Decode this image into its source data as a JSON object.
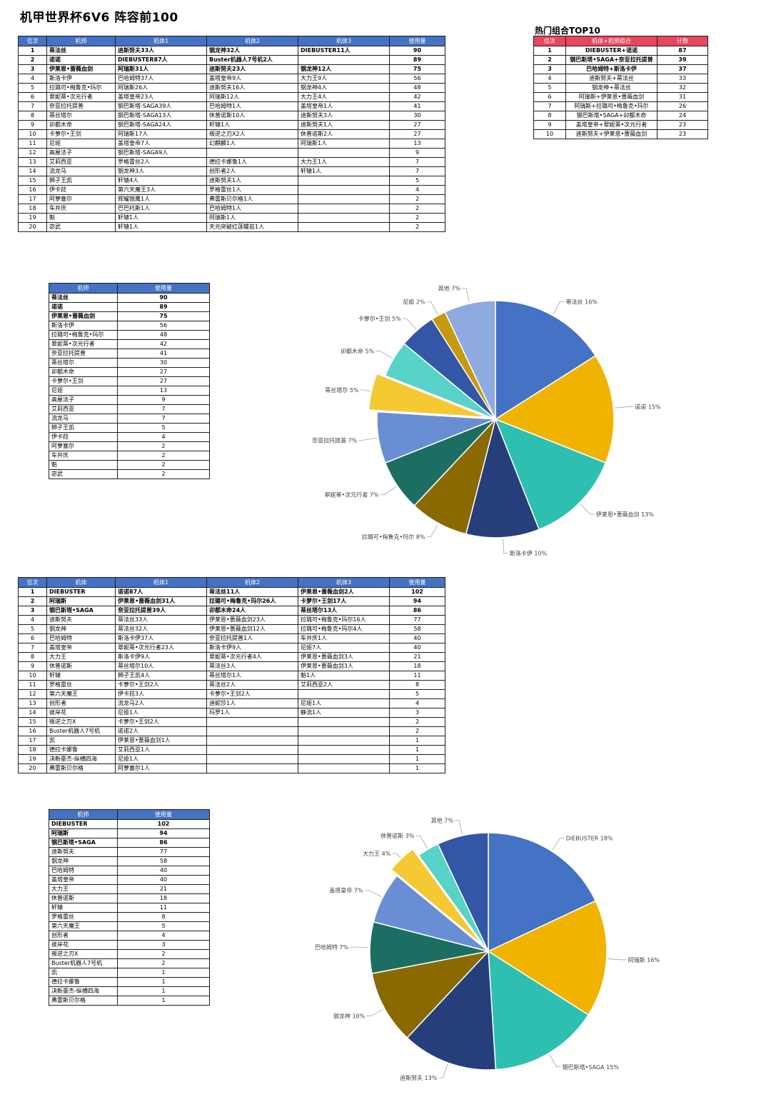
{
  "page": {
    "title": "机甲世界杯6V6 阵容前100",
    "top_combo_title": "热门组合TOP10"
  },
  "table1": {
    "headers": [
      "位次",
      "机师",
      "机体1",
      "机体2",
      "机体3",
      "使用量"
    ],
    "rows": [
      [
        "1",
        "蒂法丝",
        "迪斯努夫33人",
        "钢龙神32人",
        "DIEBUSTER11人",
        "90"
      ],
      [
        "2",
        "诺诺",
        "DIEBUSTER87人",
        "Buster机器人7号机2人",
        "",
        "89"
      ],
      [
        "3",
        "伊莱恩•蔷薇血剑",
        "阿瑞斯31人",
        "迪斯努夫23人",
        "钢龙神12人",
        "75"
      ],
      [
        "4",
        "斯洛卡伊",
        "巴哈姆特37人",
        "盖塔皇帝9人",
        "大力王9人",
        "56"
      ],
      [
        "5",
        "拉璐可•梅鲁克•玛尔",
        "阿瑞斯26人",
        "迪斯努夫16人",
        "钢龙神4人",
        "48"
      ],
      [
        "6",
        "翠妮蒂•次元行者",
        "盖塔皇帝23人",
        "阿瑞斯12人",
        "大力王4人",
        "42"
      ],
      [
        "7",
        "奈亚拉托提普",
        "钢巴斯塔-SAGA39人",
        "巴哈姆特1人",
        "盖塔皇帝1人",
        "41"
      ],
      [
        "8",
        "蒂丝塔尔",
        "钢巴斯塔-SAGA13人",
        "休普诺斯10人",
        "迪斯努夫3人",
        "30"
      ],
      [
        "9",
        "卯都木命",
        "钢巴斯塔-SAGA24人",
        "轩辕1人",
        "迪斯努夫1人",
        "27"
      ],
      [
        "10",
        "卡萝尔•王剑",
        "阿瑞斯17人",
        "叛逆之刃X2人",
        "休普诺斯2人",
        "27"
      ],
      [
        "11",
        "尼娅",
        "盖塔皇帝7人",
        "幻麒麟1人",
        "阿瑞斯1人",
        "13"
      ],
      [
        "12",
        "高屋法子",
        "钢巴斯塔-SAGA9人",
        "",
        "",
        "9"
      ],
      [
        "13",
        "艾莉西亚",
        "罗格雷丝2人",
        "德拉卡娜鲁1人",
        "大力王1人",
        "7"
      ],
      [
        "14",
        "流龙马",
        "钢龙神3人",
        "创形者2人",
        "轩辕1人",
        "7"
      ],
      [
        "15",
        "狮子王凯",
        "轩辕4人",
        "迪斯努夫1人",
        "",
        "5"
      ],
      [
        "16",
        "伊卡菈",
        "第六天魔王3人",
        "罗格雷丝1人",
        "",
        "4"
      ],
      [
        "17",
        "阿萝塞尔",
        "辉耀银鹰1人",
        "弗雷斯贝尔格1人",
        "",
        "2"
      ],
      [
        "18",
        "车弁庆",
        "巴巴托斯1人",
        "巴哈姆特1人",
        "",
        "2"
      ],
      [
        "19",
        "魁",
        "轩辕1人",
        "阿瑞斯1人",
        "",
        "2"
      ],
      [
        "20",
        "宓武",
        "轩辕1人",
        "天元突破红莲螺岩1人",
        "",
        "2"
      ]
    ]
  },
  "combo_table": {
    "headers": [
      "位次",
      "机体+机师组合",
      "计数"
    ],
    "rows": [
      [
        "1",
        "DIEBUSTER+诺诺",
        "87"
      ],
      [
        "2",
        "钢巴斯塔•SAGA+奈亚拉托提普",
        "39"
      ],
      [
        "3",
        "巴哈姆特+斯洛卡伊",
        "37"
      ],
      [
        "4",
        "迪斯努夫+蒂法丝",
        "33"
      ],
      [
        "5",
        "钢龙神+蒂法丝",
        "32"
      ],
      [
        "6",
        "阿瑞斯+伊莱恩•蔷薇血剑",
        "31"
      ],
      [
        "7",
        "阿瑞斯+拉璐可•梅鲁克•玛尔",
        "26"
      ],
      [
        "8",
        "钢巴斯塔•SAGA+卯都木命",
        "24"
      ],
      [
        "9",
        "盖塔皇帝+翠妮蒂•次元行者",
        "23"
      ],
      [
        "10",
        "迪斯努夫+伊莱恩•蔷薇血剑",
        "23"
      ]
    ]
  },
  "table2": {
    "headers": [
      "机师",
      "使用量"
    ],
    "rows": [
      [
        "蒂法丝",
        "90"
      ],
      [
        "诺诺",
        "89"
      ],
      [
        "伊莱恩•蔷薇血剑",
        "75"
      ],
      [
        "斯洛卡伊",
        "56"
      ],
      [
        "拉璐可•梅鲁克•玛尔",
        "48"
      ],
      [
        "翠妮蒂•次元行者",
        "42"
      ],
      [
        "奈亚拉托提普",
        "41"
      ],
      [
        "蒂丝塔尔",
        "30"
      ],
      [
        "卯都木命",
        "27"
      ],
      [
        "卡萝尔•王剑",
        "27"
      ],
      [
        "尼娅",
        "13"
      ],
      [
        "高屋法子",
        "9"
      ],
      [
        "艾莉西亚",
        "7"
      ],
      [
        "流龙马",
        "7"
      ],
      [
        "狮子王凯",
        "5"
      ],
      [
        "伊卡菈",
        "4"
      ],
      [
        "阿萝塞尔",
        "2"
      ],
      [
        "车弁庆",
        "2"
      ],
      [
        "魁",
        "2"
      ],
      [
        "宓武",
        "2"
      ]
    ]
  },
  "table3": {
    "headers": [
      "位次",
      "机体",
      "机体1",
      "机体2",
      "机体3",
      "使用量"
    ],
    "rows": [
      [
        "1",
        "DIEBUSTER",
        "诺诺87人",
        "蒂法丝11人",
        "伊莱恩•蔷薇血剑2人",
        "102"
      ],
      [
        "2",
        "阿瑞斯",
        "伊莱恩•蔷薇血剑31人",
        "拉璐可•梅鲁克•玛尔26人",
        "卡萝尔•王剑17人",
        "94"
      ],
      [
        "3",
        "钢巴斯塔•SAGA",
        "奈亚拉托提普39人",
        "卯都木命24人",
        "蒂丝塔尔13人",
        "86"
      ],
      [
        "4",
        "迪斯努夫",
        "蒂法丝33人",
        "伊莱恩•蔷薇血剑23人",
        "拉璐可•梅鲁克•玛尔16人",
        "77"
      ],
      [
        "5",
        "钢龙神",
        "蒂法丝32人",
        "伊莱恩•蔷薇血剑12人",
        "拉璐可•梅鲁克•玛尔4人",
        "58"
      ],
      [
        "6",
        "巴哈姆特",
        "斯洛卡伊37人",
        "奈亚拉托提普1人",
        "车弁庆1人",
        "40"
      ],
      [
        "7",
        "盖塔皇帝",
        "翠妮蒂•次元行者23人",
        "斯洛卡伊9人",
        "尼娅7人",
        "40"
      ],
      [
        "8",
        "大力王",
        "斯洛卡伊9人",
        "翠妮蒂•次元行者4人",
        "伊莱恩•蔷薇血剑3人",
        "21"
      ],
      [
        "9",
        "休普诺斯",
        "蒂丝塔尔10人",
        "蒂法丝3人",
        "伊莱恩•蔷薇血剑3人",
        "18"
      ],
      [
        "10",
        "轩辕",
        "狮子王凯4人",
        "蒂丝塔尔1人",
        "魁1人",
        "11"
      ],
      [
        "11",
        "罗格雷丝",
        "卡萝尔•王剑2人",
        "蒂法丝2人",
        "艾莉西亚2人",
        "8"
      ],
      [
        "12",
        "第六天魔王",
        "伊卡菈3人",
        "卡萝尔•王剑2人",
        "",
        "5"
      ],
      [
        "13",
        "创形者",
        "流龙马2人",
        "迪妮莎1人",
        "尼娅1人",
        "4"
      ],
      [
        "14",
        "彼岸花",
        "尼娅1人",
        "玛罗1人",
        "静流1人",
        "3"
      ],
      [
        "15",
        "叛逆之刃X",
        "卡萝尔•王剑2人",
        "",
        "",
        "2"
      ],
      [
        "16",
        "Buster机器人7号机",
        "诺诺2人",
        "",
        "",
        "2"
      ],
      [
        "17",
        "凯",
        "伊莱恩•蔷薇血剑1人",
        "",
        "",
        "1"
      ],
      [
        "18",
        "德拉卡娜鲁",
        "艾莉西亚1人",
        "",
        "",
        "1"
      ],
      [
        "19",
        "决断豪杰-纵横四海",
        "尼娅1人",
        "",
        "",
        "1"
      ],
      [
        "20",
        "弗雷斯贝尔格",
        "阿萝塞尔1人",
        "",
        "",
        "1"
      ]
    ]
  },
  "table4": {
    "headers": [
      "机师",
      "使用量"
    ],
    "rows": [
      [
        "DIEBUSTER",
        "102"
      ],
      [
        "阿瑞斯",
        "94"
      ],
      [
        "钢巴斯塔•SAGA",
        "86"
      ],
      [
        "迪斯努夫",
        "77"
      ],
      [
        "钢龙神",
        "58"
      ],
      [
        "巴哈姆特",
        "40"
      ],
      [
        "盖塔皇帝",
        "40"
      ],
      [
        "大力王",
        "21"
      ],
      [
        "休普诺斯",
        "18"
      ],
      [
        "轩辕",
        "11"
      ],
      [
        "罗格雷丝",
        "8"
      ],
      [
        "第六天魔王",
        "5"
      ],
      [
        "创形者",
        "4"
      ],
      [
        "彼岸花",
        "3"
      ],
      [
        "叛逆之刃X",
        "2"
      ],
      [
        "Buster机器人7号机",
        "2"
      ],
      [
        "凯",
        "1"
      ],
      [
        "德拉卡娜鲁",
        "1"
      ],
      [
        "决断豪杰-纵横四海",
        "1"
      ],
      [
        "弗雷斯贝尔格",
        "1"
      ]
    ]
  },
  "chart_data": [
    {
      "type": "pie",
      "title": "",
      "slices": [
        {
          "label": "蒂法丝 16%",
          "value": 16,
          "color": "#4472c4"
        },
        {
          "label": "诺诺 15%",
          "value": 15,
          "color": "#f0b400"
        },
        {
          "label": "伊莱恩•蔷薇血剑 13%",
          "value": 13,
          "color": "#2ebfb0"
        },
        {
          "label": "斯洛卡伊 10%",
          "value": 10,
          "color": "#263e7a"
        },
        {
          "label": "拉璐可•梅鲁克•玛尔 8%",
          "value": 8,
          "color": "#8a6a00"
        },
        {
          "label": "翠妮蒂•次元行者 7%",
          "value": 7,
          "color": "#1c6e63"
        },
        {
          "label": "奈亚拉托提普 7%",
          "value": 7,
          "color": "#6a8ed3"
        },
        {
          "label": "蒂丝塔尔 5%",
          "value": 5,
          "color": "#f5c933",
          "exploded": true
        },
        {
          "label": "卯都木命 5%",
          "value": 5,
          "color": "#57d3c8"
        },
        {
          "label": "卡萝尔•王剑 5%",
          "value": 5,
          "color": "#3356a6"
        },
        {
          "label": "尼娅 2%",
          "value": 2,
          "color": "#c49a10"
        },
        {
          "label": "其他 7%",
          "value": 7,
          "color": "#8eaae0"
        }
      ]
    },
    {
      "type": "pie",
      "title": "",
      "slices": [
        {
          "label": "DIEBUSTER 18%",
          "value": 18,
          "color": "#4472c4"
        },
        {
          "label": "阿瑞斯 16%",
          "value": 16,
          "color": "#f0b400"
        },
        {
          "label": "钢巴斯塔•SAGA 15%",
          "value": 15,
          "color": "#2ebfb0"
        },
        {
          "label": "迪斯努夫 13%",
          "value": 13,
          "color": "#263e7a"
        },
        {
          "label": "钢龙神 10%",
          "value": 10,
          "color": "#8a6a00"
        },
        {
          "label": "巴哈姆特 7%",
          "value": 7,
          "color": "#1c6e63"
        },
        {
          "label": "盖塔皇帝 7%",
          "value": 7,
          "color": "#6a8ed3"
        },
        {
          "label": "大力王 4%",
          "value": 4,
          "color": "#f5c933",
          "exploded": true
        },
        {
          "label": "休普诺斯 3%",
          "value": 3,
          "color": "#57d3c8"
        },
        {
          "label": "其他 7%",
          "value": 7,
          "color": "#3356a6"
        }
      ]
    }
  ]
}
